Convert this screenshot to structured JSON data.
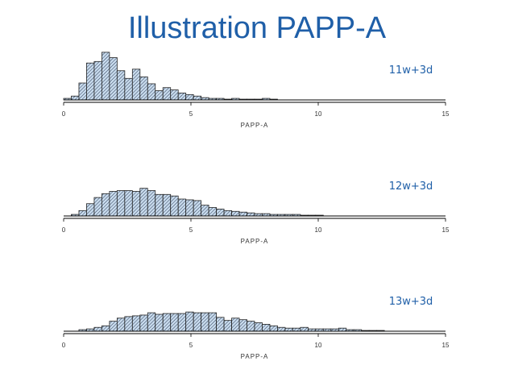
{
  "title": "Illustration PAPP-A",
  "colors": {
    "title": "#1f5fa8",
    "label": "#1f5fa8",
    "bar_fill": "#c9dcee",
    "bar_stroke": "#222222",
    "hatch": "#2b3a55"
  },
  "chart_data": [
    {
      "type": "bar",
      "label": "11w+3d",
      "xlabel": "PAPP-A",
      "xlim": [
        0,
        15
      ],
      "xticks": [
        "0",
        "5",
        "10",
        "15"
      ],
      "bin_width": 0.3,
      "x": [
        0.0,
        0.3,
        0.6,
        0.9,
        1.2,
        1.5,
        1.8,
        2.1,
        2.4,
        2.7,
        3.0,
        3.3,
        3.6,
        3.9,
        4.2,
        4.5,
        4.8,
        5.1,
        5.4,
        5.7,
        6.0,
        6.3,
        6.6,
        6.9,
        7.2,
        7.5,
        7.8,
        8.1
      ],
      "values": [
        2,
        5,
        22,
        48,
        50,
        62,
        55,
        38,
        28,
        40,
        30,
        21,
        12,
        16,
        13,
        9,
        7,
        5,
        3,
        2,
        2,
        1,
        2,
        1,
        1,
        1,
        2,
        1
      ],
      "ylim": [
        0,
        65
      ]
    },
    {
      "type": "bar",
      "label": "12w+3d",
      "xlabel": "PAPP-A",
      "xlim": [
        0,
        15
      ],
      "xticks": [
        "0",
        "5",
        "10",
        "15"
      ],
      "bin_width": 0.3,
      "x": [
        0.3,
        0.6,
        0.9,
        1.2,
        1.5,
        1.8,
        2.1,
        2.4,
        2.7,
        3.0,
        3.3,
        3.6,
        3.9,
        4.2,
        4.5,
        4.8,
        5.1,
        5.4,
        5.7,
        6.0,
        6.3,
        6.6,
        6.9,
        7.2,
        7.5,
        7.8,
        8.1,
        8.4,
        8.7,
        9.0,
        9.3,
        9.6,
        9.9
      ],
      "values": [
        2,
        7,
        16,
        24,
        29,
        32,
        33,
        33,
        32,
        36,
        33,
        28,
        28,
        26,
        22,
        21,
        20,
        14,
        11,
        9,
        7,
        6,
        5,
        4,
        3,
        3,
        2,
        2,
        2,
        2,
        1,
        1,
        1
      ],
      "ylim": [
        0,
        65
      ]
    },
    {
      "type": "bar",
      "label": "13w+3d",
      "xlabel": "PAPP-A",
      "xlim": [
        0,
        15
      ],
      "xticks": [
        "0",
        "5",
        "10",
        "15"
      ],
      "bin_width": 0.3,
      "x": [
        0.6,
        0.9,
        1.2,
        1.5,
        1.8,
        2.1,
        2.4,
        2.7,
        3.0,
        3.3,
        3.6,
        3.9,
        4.2,
        4.5,
        4.8,
        5.1,
        5.4,
        5.7,
        6.0,
        6.3,
        6.6,
        6.9,
        7.2,
        7.5,
        7.8,
        8.1,
        8.4,
        8.7,
        9.0,
        9.3,
        9.6,
        9.9,
        10.2,
        10.5,
        10.8,
        11.1,
        11.4,
        11.7,
        12.0,
        12.3
      ],
      "values": [
        2,
        3,
        5,
        7,
        13,
        17,
        19,
        20,
        21,
        24,
        22,
        23,
        23,
        23,
        25,
        24,
        24,
        24,
        18,
        14,
        17,
        15,
        13,
        11,
        9,
        7,
        5,
        4,
        4,
        5,
        3,
        3,
        3,
        3,
        4,
        2,
        2,
        1,
        1,
        1
      ],
      "ylim": [
        0,
        65
      ]
    }
  ]
}
